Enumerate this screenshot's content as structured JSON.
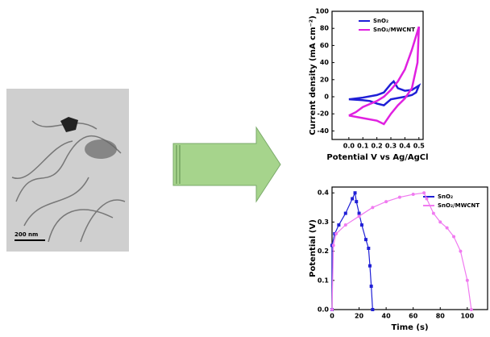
{
  "image": {
    "scale_bar": "200 nm"
  },
  "chart_data": [
    {
      "type": "line",
      "x_label": "Potential V vs Ag/AgCl",
      "y_label": "Current density (mA cm⁻²)",
      "xlim": [
        -0.12,
        0.53
      ],
      "xticks": [
        {
          "value": 0,
          "label": "0.0"
        },
        0.1,
        0.2,
        0.3,
        0.4,
        0.5
      ],
      "ylim": [
        -50,
        100
      ],
      "yticks": [
        -40,
        -20,
        0,
        20,
        40,
        60,
        80,
        100
      ],
      "legend": "upper right",
      "series": [
        {
          "name": "SnO₂",
          "color": "#1f1fd6",
          "marker": "none",
          "x": [
            0,
            0.1,
            0.2,
            0.25,
            0.3,
            0.32,
            0.35,
            0.4,
            0.45,
            0.5,
            0.48,
            0.45,
            0.4,
            0.3,
            0.25,
            0.2,
            0.15,
            0.1,
            0
          ],
          "values": [
            -3,
            -1,
            2,
            5,
            15,
            18,
            10,
            7,
            8,
            13,
            5,
            2,
            0,
            -3,
            -10,
            -8,
            -5,
            -4,
            -3
          ]
        },
        {
          "name": "SnO₂/MWCNT",
          "color": "#e020e0",
          "marker": "none",
          "x": [
            0,
            0.05,
            0.1,
            0.2,
            0.25,
            0.3,
            0.35,
            0.4,
            0.45,
            0.5,
            0.49,
            0.45,
            0.4,
            0.35,
            0.3,
            0.25,
            0.2,
            0.1,
            0
          ],
          "values": [
            -22,
            -18,
            -12,
            -5,
            0,
            8,
            18,
            32,
            55,
            82,
            40,
            10,
            -2,
            -10,
            -20,
            -32,
            -28,
            -25,
            -22
          ]
        }
      ]
    },
    {
      "type": "line",
      "x_label": "Time (s)",
      "y_label": "Potential (V)",
      "xlim": [
        0,
        115
      ],
      "xticks": [
        0,
        20,
        40,
        60,
        80,
        100
      ],
      "ylim": [
        0,
        0.42
      ],
      "yticks": [
        {
          "value": 0,
          "label": "0.0"
        },
        0.1,
        0.2,
        0.3,
        0.4
      ],
      "legend": "upper right",
      "series": [
        {
          "name": "SnO₂",
          "color": "#1f1fd6",
          "marker": "square",
          "x": [
            0,
            0,
            2,
            5,
            10,
            15,
            17,
            18,
            20,
            22,
            25,
            27,
            28,
            29,
            30
          ],
          "values": [
            0,
            0.22,
            0.26,
            0.29,
            0.33,
            0.38,
            0.4,
            0.37,
            0.33,
            0.29,
            0.24,
            0.21,
            0.15,
            0.08,
            0
          ]
        },
        {
          "name": "SnO₂/MWCNT",
          "color": "#f07af0",
          "marker": "circle",
          "x": [
            0,
            1,
            3,
            10,
            20,
            30,
            40,
            50,
            60,
            68,
            70,
            75,
            80,
            85,
            90,
            95,
            100,
            103
          ],
          "values": [
            0,
            0.22,
            0.26,
            0.29,
            0.32,
            0.35,
            0.37,
            0.385,
            0.395,
            0.4,
            0.38,
            0.33,
            0.3,
            0.28,
            0.25,
            0.2,
            0.1,
            0
          ]
        }
      ]
    }
  ]
}
